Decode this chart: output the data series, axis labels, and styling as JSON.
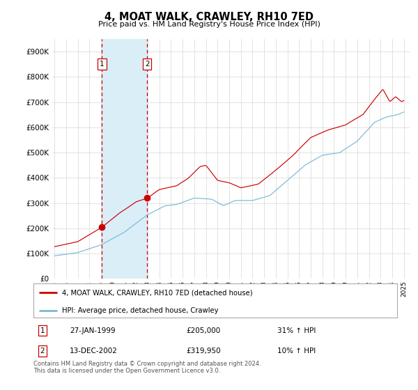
{
  "title": "4, MOAT WALK, CRAWLEY, RH10 7ED",
  "subtitle": "Price paid vs. HM Land Registry's House Price Index (HPI)",
  "legend_line1": "4, MOAT WALK, CRAWLEY, RH10 7ED (detached house)",
  "legend_line2": "HPI: Average price, detached house, Crawley",
  "transaction1_date": "27-JAN-1999",
  "transaction1_price": "£205,000",
  "transaction1_hpi": "31% ↑ HPI",
  "transaction2_date": "13-DEC-2002",
  "transaction2_price": "£319,950",
  "transaction2_hpi": "10% ↑ HPI",
  "footer": "Contains HM Land Registry data © Crown copyright and database right 2024.\nThis data is licensed under the Open Government Licence v3.0.",
  "hpi_color": "#7bb8d4",
  "price_color": "#cc0000",
  "dashed_color": "#cc0000",
  "span_color": "#daeef8",
  "background_color": "#ffffff",
  "grid_color": "#dddddd",
  "ylim": [
    0,
    950000
  ],
  "xlim_start": 1994.8,
  "xlim_end": 2025.5,
  "transaction1_x": 1999.07,
  "transaction1_y": 205000,
  "transaction2_x": 2002.95,
  "transaction2_y": 319950
}
